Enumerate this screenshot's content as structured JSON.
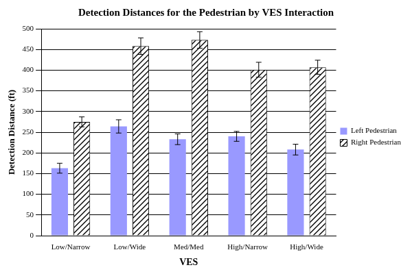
{
  "chart_data": {
    "type": "bar",
    "title": "Detection Distances for the Pedestrian by VES Interaction",
    "x_label": "VES",
    "y_label": "Detection Distance (ft)",
    "categories": [
      "Low/Narrow",
      "Low/Wide",
      "Med/Med",
      "High/Narrow",
      "High/Wide"
    ],
    "series": [
      {
        "name": "Left Pedestrian",
        "color": "#9999ff",
        "values": [
          163,
          264,
          233,
          240,
          208
        ],
        "errors": [
          12,
          16,
          13,
          12,
          13
        ]
      },
      {
        "name": "Right Pedestrian",
        "color": "#ffffff",
        "marker": "hatch",
        "values": [
          275,
          458,
          473,
          401,
          407
        ],
        "errors": [
          12,
          20,
          20,
          18,
          17
        ]
      }
    ],
    "ylim": [
      0,
      500
    ],
    "yticks": [
      0,
      50,
      100,
      150,
      200,
      250,
      300,
      350,
      400,
      450,
      500
    ],
    "grid": true,
    "legend": "right"
  }
}
